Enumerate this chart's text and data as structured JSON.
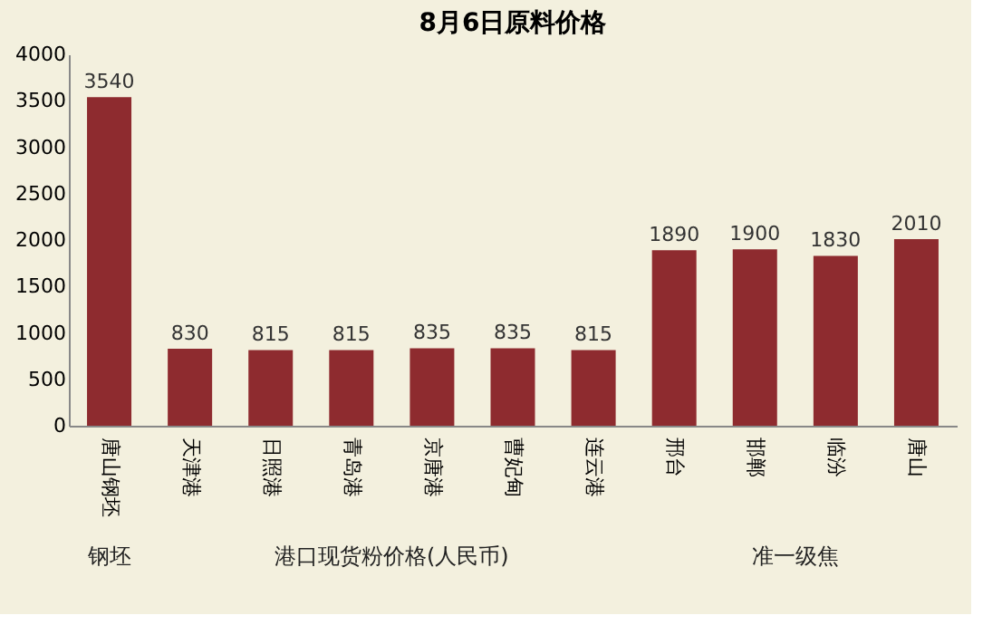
{
  "chart_data": {
    "type": "bar",
    "title": "8月6日原料价格",
    "categories": [
      "唐山钢坯",
      "天津港",
      "日照港",
      "青岛港",
      "京唐港",
      "曹妃甸",
      "连云港",
      "邢台",
      "邯郸",
      "临汾",
      "唐山"
    ],
    "values": [
      3540,
      830,
      815,
      815,
      835,
      835,
      815,
      1890,
      1900,
      1830,
      2010
    ],
    "color": "#8e2b2f",
    "data_labels": true,
    "ylim": [
      0,
      4000
    ],
    "yticks": [
      0,
      500,
      1000,
      1500,
      2000,
      2500,
      3000,
      3500,
      4000
    ],
    "grid": false,
    "annotations": [
      "钢坯",
      "港口现货粉价格(人民币)",
      "准一级焦"
    ]
  }
}
